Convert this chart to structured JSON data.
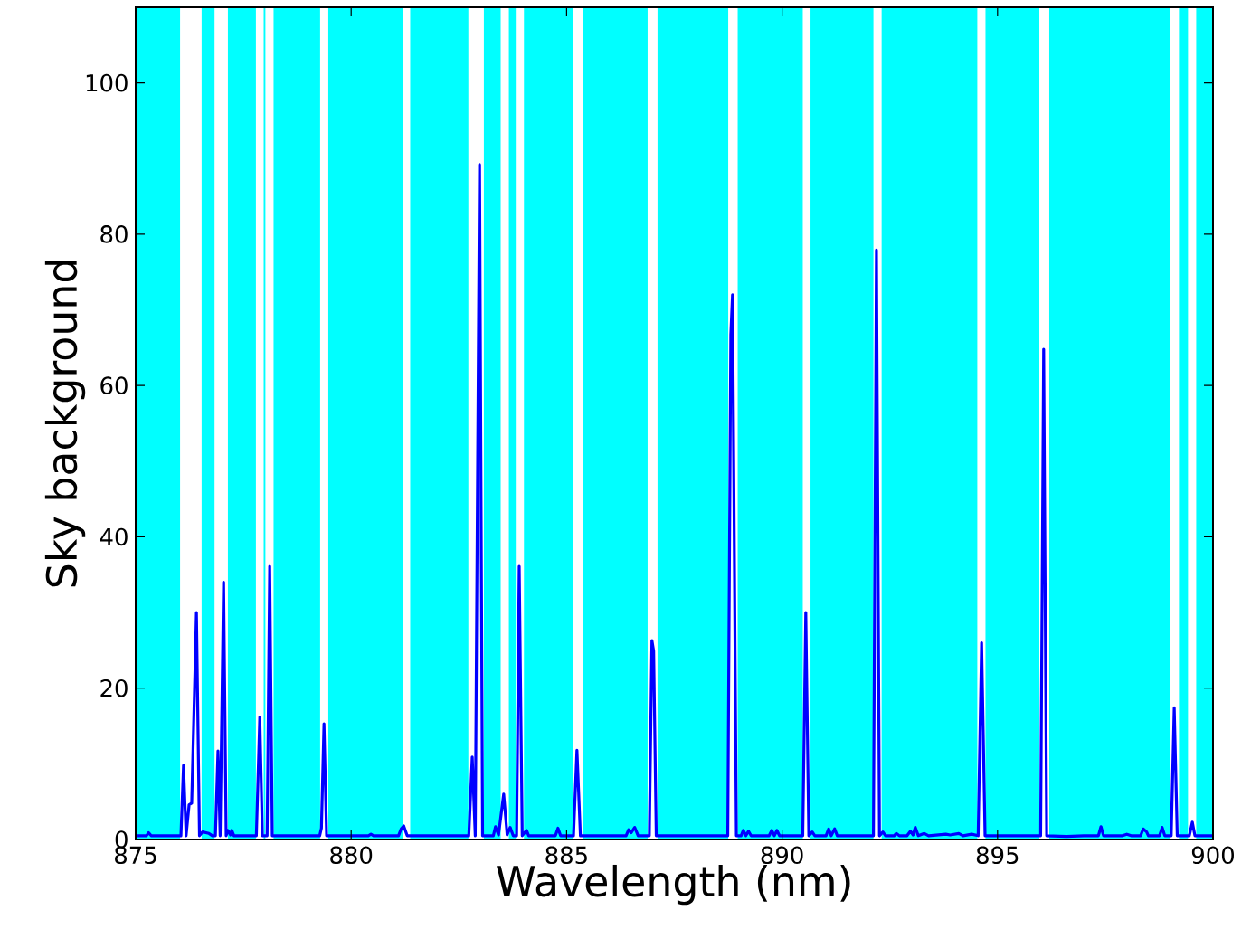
{
  "chart_data": {
    "type": "line",
    "xlabel": "Wavelength (nm)",
    "ylabel": "Sky background",
    "xlim": [
      875,
      900
    ],
    "ylim": [
      0,
      110
    ],
    "xticks": [
      875,
      880,
      885,
      890,
      895,
      900
    ],
    "yticks": [
      0,
      20,
      40,
      60,
      80,
      100
    ],
    "grid": false,
    "marker": "none",
    "line_style": "solid",
    "bands": [
      {
        "axis": "x",
        "from": 875.0,
        "to": 876.03,
        "color": "#00ffff"
      },
      {
        "axis": "x",
        "from": 876.53,
        "to": 876.83,
        "color": "#00ffff"
      },
      {
        "axis": "x",
        "from": 877.14,
        "to": 877.79,
        "color": "#00ffff"
      },
      {
        "axis": "x",
        "from": 877.97,
        "to": 878.01,
        "color": "#00ffff"
      },
      {
        "axis": "x",
        "from": 878.2,
        "to": 879.28,
        "color": "#00ffff"
      },
      {
        "axis": "x",
        "from": 879.47,
        "to": 881.21,
        "color": "#00ffff"
      },
      {
        "axis": "x",
        "from": 881.37,
        "to": 882.72,
        "color": "#00ffff"
      },
      {
        "axis": "x",
        "from": 883.08,
        "to": 883.47,
        "color": "#00ffff"
      },
      {
        "axis": "x",
        "from": 883.66,
        "to": 883.82,
        "color": "#00ffff"
      },
      {
        "axis": "x",
        "from": 884.01,
        "to": 885.14,
        "color": "#00ffff"
      },
      {
        "axis": "x",
        "from": 885.38,
        "to": 886.88,
        "color": "#00ffff"
      },
      {
        "axis": "x",
        "from": 887.11,
        "to": 888.75,
        "color": "#00ffff"
      },
      {
        "axis": "x",
        "from": 888.97,
        "to": 890.48,
        "color": "#00ffff"
      },
      {
        "axis": "x",
        "from": 890.66,
        "to": 892.12,
        "color": "#00ffff"
      },
      {
        "axis": "x",
        "from": 892.31,
        "to": 894.53,
        "color": "#00ffff"
      },
      {
        "axis": "x",
        "from": 894.72,
        "to": 895.97,
        "color": "#00ffff"
      },
      {
        "axis": "x",
        "from": 896.2,
        "to": 899.01,
        "color": "#00ffff"
      },
      {
        "axis": "x",
        "from": 899.21,
        "to": 899.42,
        "color": "#00ffff"
      },
      {
        "axis": "x",
        "from": 899.61,
        "to": 900.0,
        "color": "#00ffff"
      }
    ],
    "series": [
      {
        "color": "#0000ff",
        "x": [
          875.0,
          875.25,
          875.3,
          875.36,
          876.05,
          876.11,
          876.17,
          876.24,
          876.3,
          876.41,
          876.48,
          876.55,
          876.7,
          876.78,
          876.85,
          876.91,
          876.96,
          877.04,
          877.1,
          877.14,
          877.2,
          877.23,
          877.28,
          877.8,
          877.88,
          877.94,
          878.05,
          878.11,
          878.17,
          879.27,
          879.31,
          879.37,
          879.43,
          880.4,
          880.46,
          880.52,
          881.1,
          881.16,
          881.22,
          881.3,
          882.73,
          882.81,
          882.88,
          882.98,
          883.05,
          883.3,
          883.35,
          883.42,
          883.54,
          883.62,
          883.69,
          883.76,
          883.84,
          883.9,
          883.97,
          884.07,
          884.12,
          884.74,
          884.8,
          884.86,
          885.16,
          885.24,
          885.32,
          886.38,
          886.44,
          886.5,
          886.58,
          886.66,
          886.92,
          886.98,
          887.02,
          887.08,
          888.74,
          888.81,
          888.85,
          888.94,
          889.05,
          889.1,
          889.16,
          889.22,
          889.28,
          889.7,
          889.76,
          889.82,
          889.88,
          889.94,
          890.48,
          890.55,
          890.62,
          890.7,
          890.76,
          891.02,
          891.08,
          891.14,
          891.22,
          891.28,
          892.12,
          892.19,
          892.26,
          892.34,
          892.4,
          892.6,
          892.65,
          892.72,
          892.9,
          892.98,
          893.04,
          893.09,
          893.16,
          893.3,
          893.4,
          893.8,
          893.9,
          894.1,
          894.2,
          894.4,
          894.55,
          894.63,
          894.71,
          896.0,
          896.07,
          896.14,
          896.6,
          897.0,
          897.34,
          897.4,
          897.46,
          897.9,
          898.0,
          898.1,
          898.32,
          898.38,
          898.46,
          898.5,
          898.76,
          898.82,
          898.88,
          899.03,
          899.1,
          899.17,
          899.45,
          899.52,
          899.58,
          900.0
        ],
        "values": [
          0.5,
          0.5,
          0.9,
          0.5,
          0.5,
          9.8,
          0.5,
          4.6,
          4.8,
          30.0,
          0.5,
          1.0,
          0.8,
          0.5,
          0.5,
          11.7,
          0.5,
          34.0,
          0.5,
          1.2,
          0.6,
          1.2,
          0.5,
          0.5,
          16.2,
          0.5,
          0.5,
          36.1,
          0.5,
          0.5,
          1.5,
          15.3,
          0.5,
          0.5,
          0.7,
          0.5,
          0.5,
          1.4,
          1.8,
          0.5,
          0.5,
          10.9,
          0.5,
          89.2,
          0.5,
          0.5,
          1.7,
          0.6,
          6.0,
          0.6,
          1.6,
          0.5,
          0.5,
          36.1,
          0.5,
          1.2,
          0.5,
          0.5,
          1.5,
          0.5,
          0.5,
          11.8,
          0.5,
          0.5,
          1.3,
          0.9,
          1.6,
          0.5,
          0.5,
          26.3,
          24.9,
          0.5,
          0.5,
          66.7,
          72.0,
          0.5,
          0.5,
          1.2,
          0.5,
          1.1,
          0.5,
          0.5,
          1.2,
          0.5,
          1.2,
          0.5,
          0.5,
          30.0,
          0.5,
          1.0,
          0.5,
          0.5,
          1.4,
          0.5,
          1.4,
          0.5,
          0.5,
          77.9,
          0.5,
          1.0,
          0.5,
          0.5,
          0.8,
          0.5,
          0.5,
          1.1,
          0.6,
          1.6,
          0.5,
          0.8,
          0.5,
          0.7,
          0.6,
          0.8,
          0.5,
          0.7,
          0.5,
          26.0,
          0.5,
          0.5,
          64.8,
          0.5,
          0.4,
          0.5,
          0.5,
          1.7,
          0.5,
          0.5,
          0.7,
          0.5,
          0.5,
          1.4,
          1.0,
          0.5,
          0.5,
          1.6,
          0.5,
          0.5,
          17.4,
          0.5,
          0.5,
          2.3,
          0.5,
          0.5
        ]
      }
    ]
  }
}
